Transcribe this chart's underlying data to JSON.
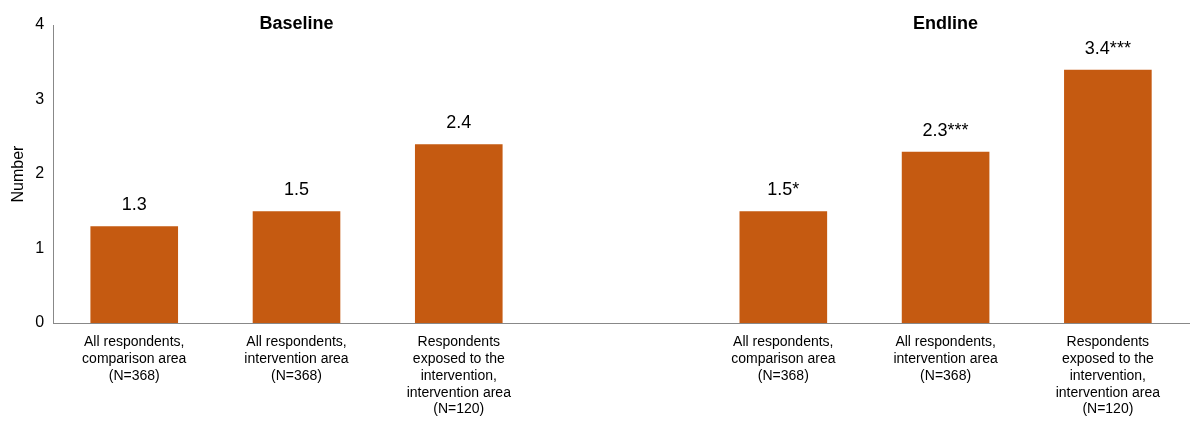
{
  "chart_data": {
    "type": "bar",
    "ylabel": "Number",
    "categories": [
      "All respondents, comparison area (N=368)",
      "All respondents, intervention area (N=368)",
      "Respondents exposed to the intervention, intervention area (N=120)",
      null,
      "All respondents, comparison area (N=368)",
      "All respondents, intervention area (N=368)",
      "Respondents exposed to the intervention, intervention area (N=120)"
    ],
    "values": [
      1.3,
      1.5,
      2.4,
      null,
      1.5,
      2.3,
      3.4
    ],
    "value_labels": [
      "1.3",
      "1.5",
      "2.4",
      null,
      "1.5*",
      "2.3***",
      "3.4***"
    ],
    "color": "#c55a11",
    "ylim": [
      0,
      4
    ],
    "yticks": [
      0,
      1,
      2,
      3,
      4
    ],
    "grid": false,
    "legend": false,
    "annotations": [
      "Baseline",
      "Endline"
    ]
  }
}
